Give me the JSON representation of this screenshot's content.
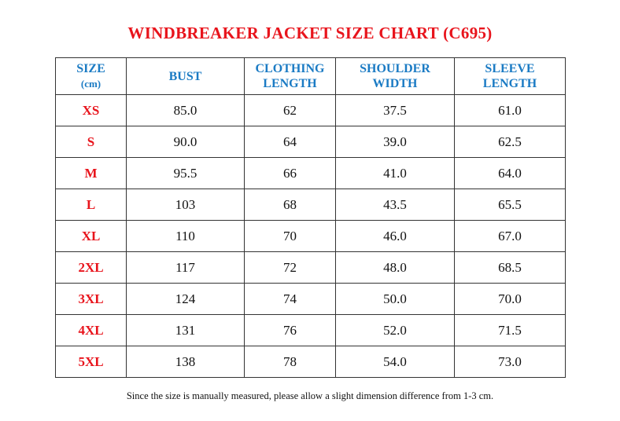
{
  "header": {
    "title": "WINDBREAKER JACKET SIZE CHART (C695)"
  },
  "table": {
    "columns": [
      [
        "SIZE",
        "(cm)"
      ],
      [
        "BUST"
      ],
      [
        "CLOTHING",
        "LENGTH"
      ],
      [
        "SHOULDER",
        "WIDTH"
      ],
      [
        "SLEEVE",
        "LENGTH"
      ]
    ],
    "rows": [
      [
        "XS",
        "85.0",
        "62",
        "37.5",
        "61.0"
      ],
      [
        "S",
        "90.0",
        "64",
        "39.0",
        "62.5"
      ],
      [
        "M",
        "95.5",
        "66",
        "41.0",
        "64.0"
      ],
      [
        "L",
        "103",
        "68",
        "43.5",
        "65.5"
      ],
      [
        "XL",
        "110",
        "70",
        "46.0",
        "67.0"
      ],
      [
        "2XL",
        "117",
        "72",
        "48.0",
        "68.5"
      ],
      [
        "3XL",
        "124",
        "74",
        "50.0",
        "70.0"
      ],
      [
        "4XL",
        "131",
        "76",
        "52.0",
        "71.5"
      ],
      [
        "5XL",
        "138",
        "78",
        "54.0",
        "73.0"
      ]
    ]
  },
  "footer": {
    "note": "Since the size is manually measured, please allow a slight dimension difference from 1-3 cm."
  }
}
